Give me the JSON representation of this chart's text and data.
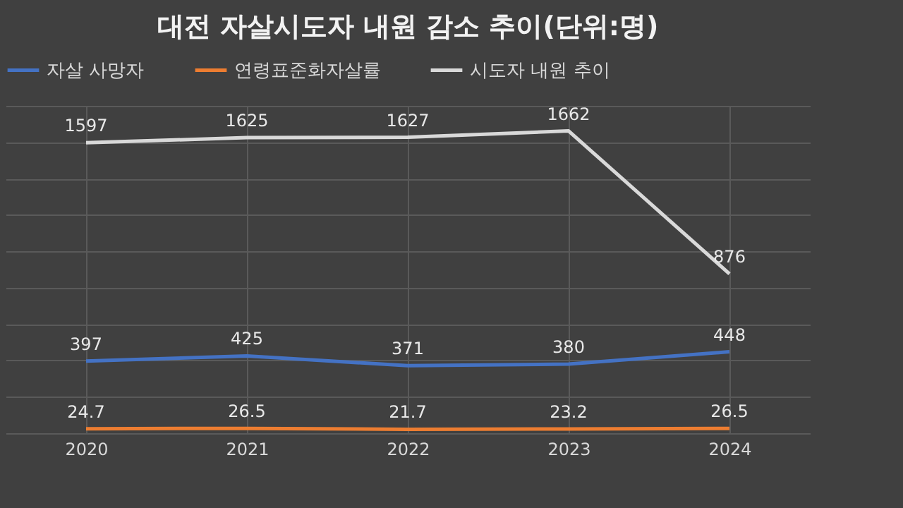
{
  "chart_data": {
    "type": "line",
    "title": "대전 자살시도자 내원 감소 추이(단위:명)",
    "categories": [
      "2020",
      "2021",
      "2022",
      "2023",
      "2024"
    ],
    "series": [
      {
        "name": "자살 사망자",
        "color": "#4472c4",
        "values": [
          397,
          425,
          371,
          380,
          448
        ]
      },
      {
        "name": "연령표준화자살률",
        "color": "#ed7d31",
        "values": [
          24.7,
          26.5,
          21.7,
          23.2,
          26.5
        ]
      },
      {
        "name": "시도자 내원 추이",
        "color": "#d9d9d9",
        "values": [
          1597,
          1625,
          1627,
          1662,
          876
        ]
      }
    ],
    "ylim": [
      0,
      1800
    ],
    "tick_labels": "x",
    "grid": true,
    "legend": "top",
    "data_labels": true,
    "marker": "none",
    "line_style": "solid"
  }
}
